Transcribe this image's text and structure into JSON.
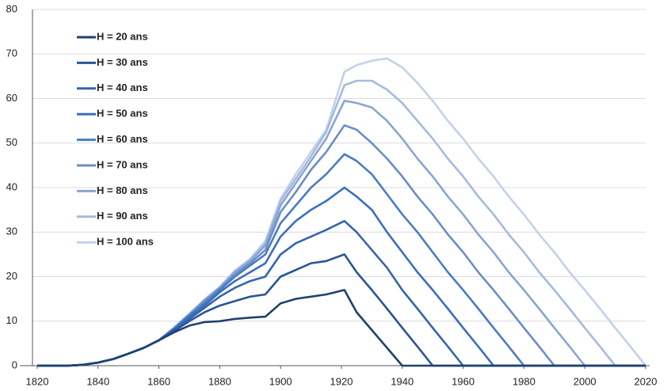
{
  "chart_data": {
    "type": "line",
    "x": [
      1820,
      1830,
      1835,
      1840,
      1845,
      1850,
      1855,
      1860,
      1865,
      1870,
      1875,
      1880,
      1885,
      1890,
      1895,
      1900,
      1905,
      1910,
      1915,
      1921,
      1925,
      1930,
      1935,
      1940,
      1945,
      1950,
      1955,
      1960,
      1965,
      1970,
      1975,
      1980,
      1985,
      1990,
      1995,
      2000,
      2005,
      2010,
      2015,
      2020
    ],
    "xlim": [
      1820,
      2020
    ],
    "xticks": [
      1820,
      1840,
      1860,
      1880,
      1900,
      1920,
      1940,
      1960,
      1980,
      2000,
      2020
    ],
    "ylim": [
      0,
      80
    ],
    "yticks": [
      0,
      10,
      20,
      30,
      40,
      50,
      60,
      70,
      80
    ],
    "grid": true,
    "legend": "upper left",
    "series": [
      {
        "name": "H = 20 ans",
        "color": "#1f4170",
        "values": [
          0,
          0,
          0.2,
          0.7,
          1.5,
          2.7,
          4,
          5.7,
          7.5,
          9,
          9.8,
          10,
          10.5,
          10.8,
          11,
          14,
          15,
          15.5,
          16,
          17,
          12,
          8,
          4,
          0,
          0,
          0,
          0,
          0,
          0,
          0,
          0,
          0,
          0,
          0,
          0,
          0,
          0,
          0,
          0,
          0
        ]
      },
      {
        "name": "H = 30 ans",
        "color": "#2a5597",
        "values": [
          0,
          0,
          0.2,
          0.7,
          1.5,
          2.7,
          4,
          5.7,
          7.8,
          10,
          12,
          13.5,
          14.5,
          15.5,
          16,
          20,
          21.5,
          23,
          23.5,
          25,
          21,
          17,
          12.8,
          8.5,
          4.3,
          0,
          0,
          0,
          0,
          0,
          0,
          0,
          0,
          0,
          0,
          0,
          0,
          0,
          0,
          0
        ]
      },
      {
        "name": "H = 40 ans",
        "color": "#3565ad",
        "values": [
          0,
          0,
          0.2,
          0.7,
          1.5,
          2.7,
          4,
          5.7,
          8,
          10.5,
          13,
          15.5,
          17.5,
          19,
          20,
          25,
          27.5,
          29,
          30.5,
          32.5,
          30,
          26,
          22,
          17,
          12.8,
          8.5,
          4.3,
          0,
          0,
          0,
          0,
          0,
          0,
          0,
          0,
          0,
          0,
          0,
          0,
          0
        ]
      },
      {
        "name": "H = 50 ans",
        "color": "#3a6fbf",
        "values": [
          0,
          0,
          0.2,
          0.7,
          1.5,
          2.7,
          4,
          5.7,
          8.2,
          11,
          13.5,
          16.5,
          19,
          21,
          23,
          29,
          32.5,
          35,
          37,
          40,
          38,
          35,
          30,
          25.5,
          21,
          17,
          12.8,
          8.5,
          4.3,
          0,
          0,
          0,
          0,
          0,
          0,
          0,
          0,
          0,
          0,
          0
        ]
      },
      {
        "name": "H = 60 ans",
        "color": "#4a7cc4",
        "values": [
          0,
          0,
          0.2,
          0.7,
          1.5,
          2.7,
          4,
          5.7,
          8.3,
          11.2,
          14,
          17,
          20,
          22.5,
          25,
          32,
          36,
          40,
          43,
          47.5,
          46,
          43,
          38.5,
          34,
          30,
          25.5,
          21,
          17,
          12.8,
          8.5,
          4.3,
          0,
          0,
          0,
          0,
          0,
          0,
          0,
          0,
          0
        ]
      },
      {
        "name": "H = 70 ans",
        "color": "#6a8ec8",
        "values": [
          0,
          0,
          0.2,
          0.7,
          1.5,
          2.7,
          4,
          5.7,
          8.4,
          11.4,
          14.5,
          17.3,
          20.5,
          23,
          26,
          34.5,
          39,
          44,
          48,
          54,
          53,
          50,
          46.5,
          42.5,
          38,
          34,
          29.5,
          25.5,
          21,
          17,
          12.8,
          8.5,
          4.3,
          0,
          0,
          0,
          0,
          0,
          0,
          0
        ]
      },
      {
        "name": "H = 80 ans",
        "color": "#8aa5d3",
        "values": [
          0,
          0,
          0.2,
          0.7,
          1.5,
          2.7,
          4,
          5.7,
          8.5,
          11.5,
          14.7,
          17.5,
          21,
          23.5,
          27,
          36,
          41,
          46,
          51,
          59.5,
          59,
          58,
          55,
          51,
          46.5,
          42.5,
          38,
          34,
          29.5,
          25.5,
          21,
          17,
          12.8,
          8.5,
          4.3,
          0,
          0,
          0,
          0,
          0
        ]
      },
      {
        "name": "H = 90 ans",
        "color": "#a6bade",
        "values": [
          0,
          0,
          0.2,
          0.7,
          1.5,
          2.7,
          4,
          5.7,
          8.5,
          11.6,
          14.8,
          17.6,
          21.2,
          23.8,
          27.5,
          37,
          42,
          47,
          52.5,
          63,
          64,
          64,
          62,
          59,
          55,
          51,
          46.5,
          42.5,
          38,
          34,
          29.5,
          25.5,
          21,
          17,
          12.8,
          8.5,
          4.3,
          0,
          0,
          0
        ]
      },
      {
        "name": "H = 100 ans",
        "color": "#c3d1ea",
        "values": [
          0,
          0,
          0.2,
          0.7,
          1.5,
          2.7,
          4,
          5.7,
          8.6,
          11.7,
          14.9,
          17.7,
          21.4,
          24,
          28,
          37.5,
          43,
          48,
          53,
          66,
          67.5,
          68.5,
          69,
          67,
          63.5,
          59.5,
          55,
          51,
          46.5,
          42.5,
          38,
          34,
          29.5,
          25.5,
          21,
          17,
          12.8,
          8.5,
          4.3,
          0
        ]
      }
    ]
  }
}
